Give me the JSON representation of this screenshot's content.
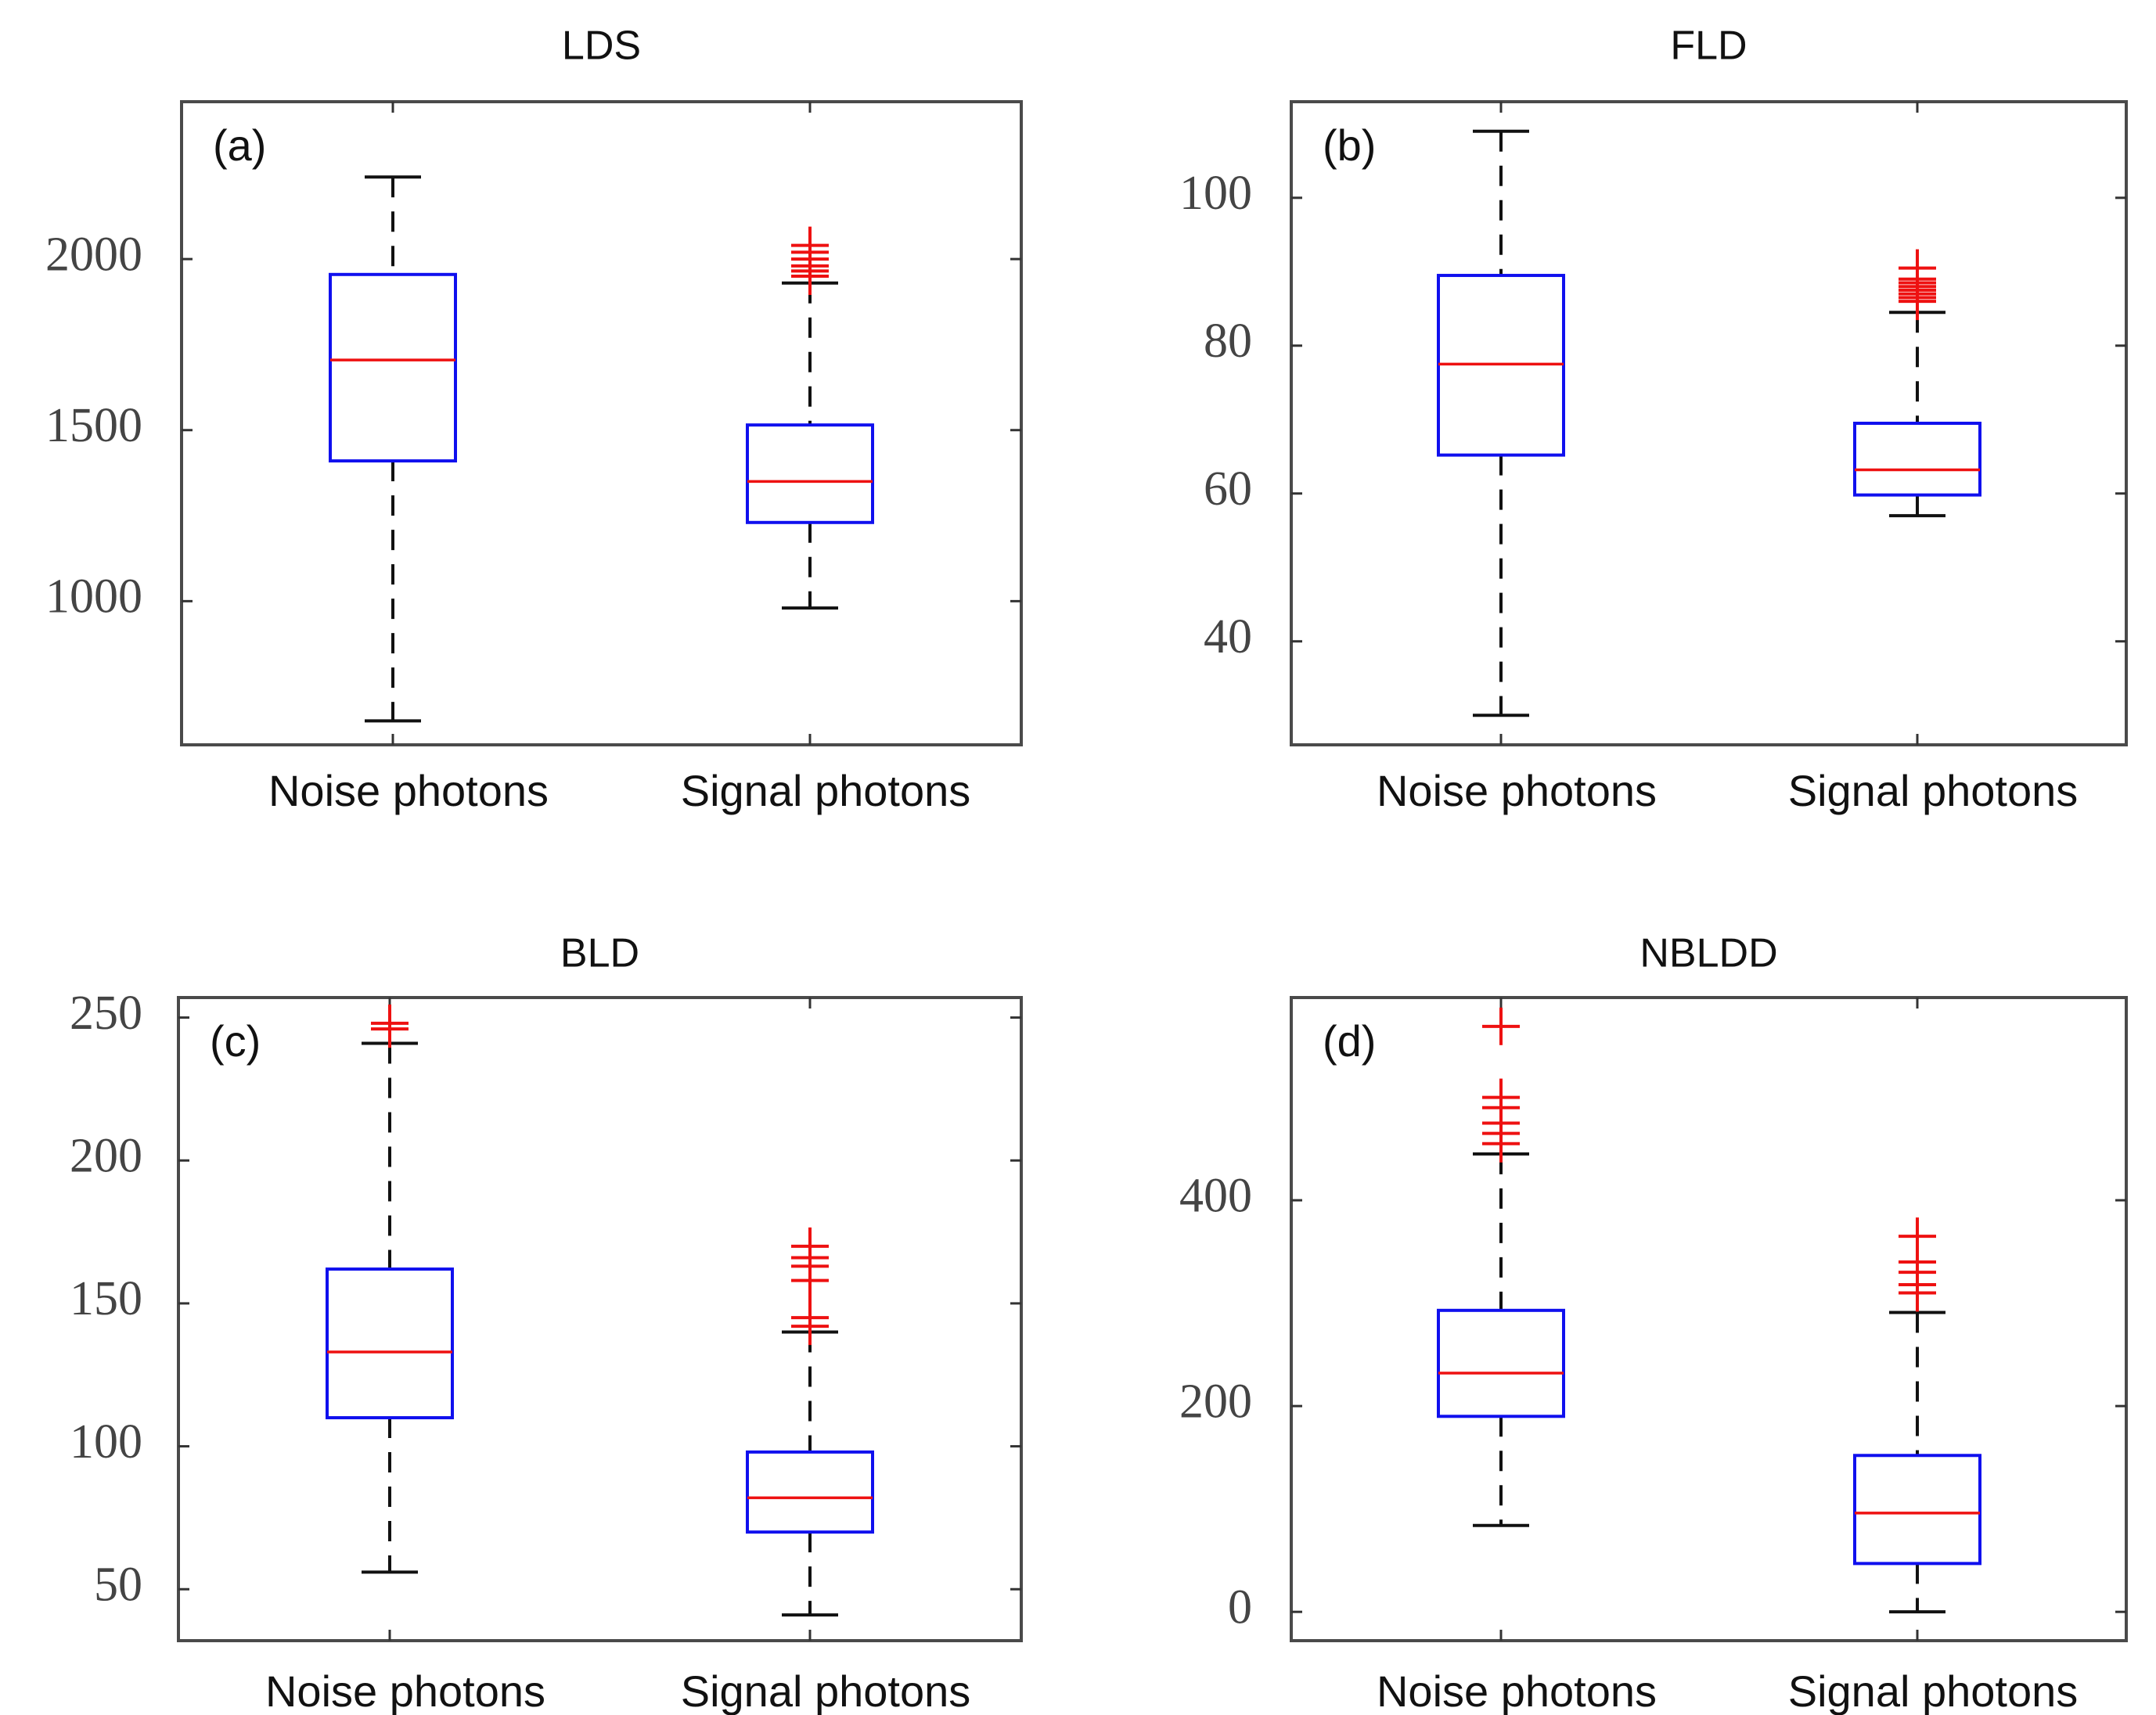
{
  "colors": {
    "box": "#1010ee",
    "median": "#ee1111",
    "outlier": "#ee1111",
    "whisker": "#111111"
  },
  "chart_data": [
    {
      "type": "box",
      "title": "LDS",
      "panel_label": "(a)",
      "categories": [
        "Noise photons",
        "Signal photons"
      ],
      "ylim": [
        580,
        2460
      ],
      "yticks": [
        1000,
        1500,
        2000
      ],
      "boxes": [
        {
          "name": "Noise photons",
          "whisker_low": 650,
          "q1": 1410,
          "median": 1705,
          "q3": 1955,
          "whisker_high": 2240,
          "outliers": []
        },
        {
          "name": "Signal photons",
          "whisker_low": 980,
          "q1": 1230,
          "median": 1350,
          "q3": 1515,
          "whisker_high": 1930,
          "outliers": [
            1950,
            1965,
            1980,
            2000,
            2020,
            2040
          ]
        }
      ]
    },
    {
      "type": "box",
      "title": "FLD",
      "panel_label": "(b)",
      "categories": [
        "Noise photons",
        "Signal photons"
      ],
      "ylim": [
        26,
        113
      ],
      "yticks": [
        40,
        60,
        80,
        100
      ],
      "boxes": [
        {
          "name": "Noise photons",
          "whisker_low": 30,
          "q1": 65.2,
          "median": 77.5,
          "q3": 89.5,
          "whisker_high": 109,
          "outliers": []
        },
        {
          "name": "Signal photons",
          "whisker_low": 57,
          "q1": 59.8,
          "median": 63.2,
          "q3": 69.5,
          "whisker_high": 84.5,
          "outliers": [
            86,
            86.5,
            87,
            87.5,
            88,
            88.5,
            89,
            90.5
          ]
        }
      ]
    },
    {
      "type": "box",
      "title": "BLD",
      "panel_label": "(c)",
      "categories": [
        "Noise photons",
        "Signal photons"
      ],
      "ylim": [
        32,
        257
      ],
      "yticks": [
        50,
        100,
        150,
        200,
        250
      ],
      "boxes": [
        {
          "name": "Noise photons",
          "whisker_low": 56,
          "q1": 110,
          "median": 133,
          "q3": 162,
          "whisker_high": 241,
          "outliers": [
            246,
            248
          ]
        },
        {
          "name": "Signal photons",
          "whisker_low": 41,
          "q1": 70,
          "median": 82,
          "q3": 98,
          "whisker_high": 140,
          "outliers": [
            142,
            145,
            158,
            163,
            166,
            170
          ]
        }
      ]
    },
    {
      "type": "box",
      "title": "NBLDD",
      "panel_label": "(d)",
      "categories": [
        "Noise photons",
        "Signal photons"
      ],
      "ylim": [
        -28,
        597
      ],
      "yticks": [
        0,
        200,
        400
      ],
      "boxes": [
        {
          "name": "Noise photons",
          "whisker_low": 84,
          "q1": 190,
          "median": 232,
          "q3": 293,
          "whisker_high": 445,
          "outliers": [
            455,
            465,
            475,
            490,
            500,
            569
          ]
        },
        {
          "name": "Signal photons",
          "whisker_low": 0,
          "q1": 47,
          "median": 96,
          "q3": 152,
          "whisker_high": 291,
          "outliers": [
            310,
            318,
            330,
            340,
            365
          ]
        }
      ]
    }
  ]
}
